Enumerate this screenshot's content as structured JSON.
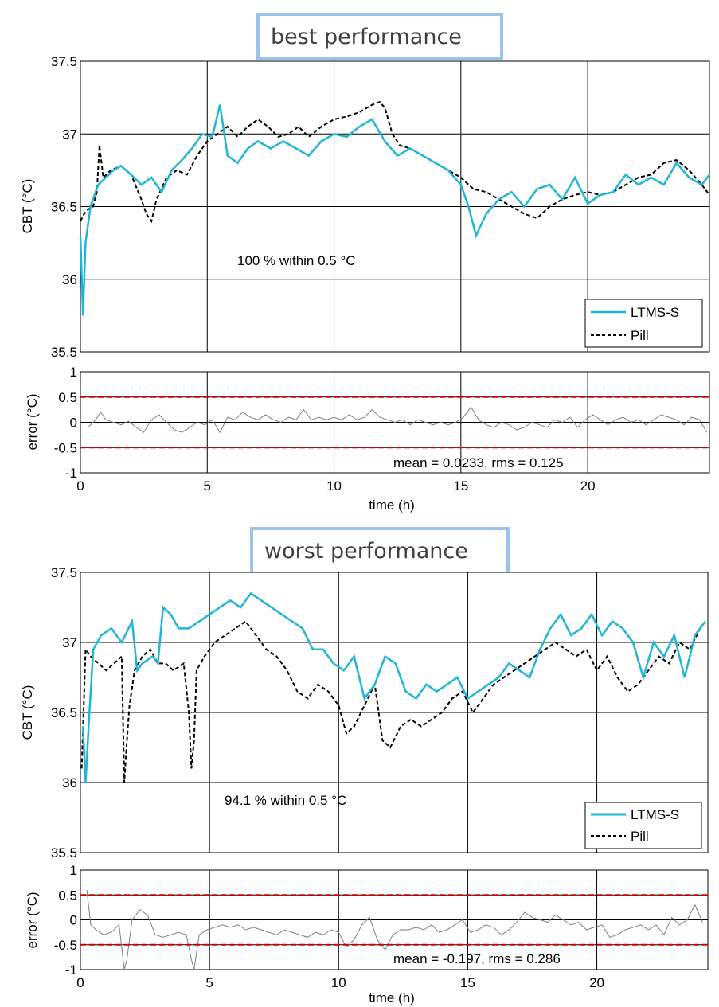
{
  "colors": {
    "ltms": "#1fb6d6",
    "pill": "#000000",
    "limit": "#cc0000",
    "error": "#7f7f7f"
  },
  "chart_data": [
    {
      "type": "line",
      "title": "best performance",
      "ylabel": "CBT (°C)",
      "xlabel": "",
      "xlim": [
        0,
        24.8
      ],
      "ylim": [
        35.5,
        37.5
      ],
      "xticks": [
        "0",
        "5",
        "10",
        "15",
        "20"
      ],
      "yticks": [
        "35.5",
        "36",
        "36.5",
        "37",
        "37.5"
      ],
      "grid": true,
      "legend": "bottom-right",
      "annotation": "100 % within 0.5 °C",
      "series": [
        {
          "name": "LTMS-S",
          "x": [
            0,
            0.1,
            0.2,
            0.4,
            0.7,
            1.0,
            1.3,
            1.6,
            2.0,
            2.4,
            2.8,
            3.2,
            3.6,
            4.0,
            4.4,
            4.8,
            5.2,
            5.5,
            5.8,
            6.2,
            6.6,
            7.0,
            7.5,
            8.0,
            8.5,
            9.0,
            9.5,
            10.0,
            10.5,
            11.0,
            11.5,
            12.0,
            12.5,
            13.0,
            13.5,
            14.0,
            14.5,
            15.0,
            15.3,
            15.6,
            16.0,
            16.5,
            17.0,
            17.5,
            18.0,
            18.5,
            19.0,
            19.5,
            20.0,
            20.5,
            21.0,
            21.5,
            22.0,
            22.5,
            23.0,
            23.5,
            24.0,
            24.5,
            24.8
          ],
          "y": [
            36.3,
            35.75,
            36.25,
            36.5,
            36.65,
            36.7,
            36.75,
            36.78,
            36.72,
            36.65,
            36.7,
            36.6,
            36.75,
            36.82,
            36.9,
            37.0,
            36.98,
            37.2,
            36.85,
            36.8,
            36.9,
            36.95,
            36.9,
            36.95,
            36.9,
            36.85,
            36.95,
            37.0,
            36.98,
            37.05,
            37.1,
            36.95,
            36.85,
            36.9,
            36.85,
            36.8,
            36.75,
            36.65,
            36.5,
            36.3,
            36.45,
            36.55,
            36.6,
            36.5,
            36.62,
            36.65,
            36.55,
            36.7,
            36.52,
            36.58,
            36.6,
            36.72,
            36.65,
            36.7,
            36.65,
            36.8,
            36.7,
            36.65,
            36.72
          ]
        },
        {
          "name": "Pill",
          "x": [
            0,
            0.15,
            0.3,
            0.5,
            0.65,
            0.75,
            0.9,
            1.2,
            1.6,
            2.0,
            2.4,
            2.6,
            2.8,
            3.0,
            3.4,
            3.8,
            4.2,
            4.6,
            5.0,
            5.4,
            5.8,
            6.2,
            6.6,
            7.0,
            7.4,
            7.8,
            8.2,
            8.6,
            9.0,
            9.5,
            10.0,
            10.5,
            11.0,
            11.5,
            11.8,
            12.0,
            12.3,
            12.6,
            13.0,
            13.5,
            14.0,
            14.5,
            15.0,
            15.5,
            16.0,
            16.5,
            17.0,
            17.5,
            18.0,
            18.5,
            19.0,
            19.5,
            20.0,
            20.5,
            21.0,
            21.5,
            22.0,
            22.5,
            23.0,
            23.5,
            24.0,
            24.5,
            24.8
          ],
          "y": [
            36.4,
            36.45,
            36.48,
            36.5,
            36.6,
            36.92,
            36.7,
            36.75,
            36.78,
            36.72,
            36.55,
            36.45,
            36.4,
            36.55,
            36.7,
            36.75,
            36.72,
            36.85,
            36.95,
            37.0,
            37.05,
            36.98,
            37.05,
            37.1,
            37.05,
            36.98,
            37.0,
            37.05,
            36.98,
            37.05,
            37.1,
            37.12,
            37.15,
            37.2,
            37.22,
            37.18,
            37.0,
            36.92,
            36.9,
            36.85,
            36.8,
            36.75,
            36.7,
            36.62,
            36.6,
            36.55,
            36.5,
            36.45,
            36.42,
            36.5,
            36.55,
            36.58,
            36.6,
            36.58,
            36.6,
            36.65,
            36.7,
            36.72,
            36.8,
            36.82,
            36.75,
            36.65,
            36.58
          ]
        }
      ]
    },
    {
      "type": "line",
      "ylabel": "error (°C)",
      "xlabel": "time (h)",
      "xlim": [
        0,
        24.8
      ],
      "ylim": [
        -1,
        1
      ],
      "xticks": [
        "0",
        "5",
        "10",
        "15",
        "20"
      ],
      "yticks": [
        "-1",
        "-0.5",
        "0",
        "0.5",
        "1"
      ],
      "grid": true,
      "limits": [
        0.5,
        -0.5
      ],
      "annotation": "mean = 0.0233, rms = 0.125",
      "series": [
        {
          "x": [
            0.3,
            0.6,
            0.8,
            1.0,
            1.3,
            1.6,
            1.9,
            2.2,
            2.5,
            2.8,
            3.1,
            3.4,
            3.7,
            4.0,
            4.3,
            4.6,
            4.9,
            5.2,
            5.5,
            5.8,
            6.1,
            6.4,
            6.7,
            7.0,
            7.3,
            7.6,
            7.9,
            8.2,
            8.5,
            8.8,
            9.1,
            9.4,
            9.7,
            10.0,
            10.3,
            10.6,
            10.9,
            11.2,
            11.5,
            11.8,
            12.1,
            12.4,
            12.7,
            13.0,
            13.3,
            13.6,
            13.9,
            14.2,
            14.5,
            14.8,
            15.1,
            15.4,
            15.7,
            16.0,
            16.3,
            16.6,
            16.9,
            17.2,
            17.5,
            17.8,
            18.1,
            18.4,
            18.7,
            19.0,
            19.3,
            19.6,
            19.9,
            20.2,
            20.5,
            20.8,
            21.1,
            21.4,
            21.7,
            22.0,
            22.3,
            22.6,
            22.9,
            23.2,
            23.5,
            23.8,
            24.1,
            24.4,
            24.7
          ],
          "y": [
            -0.1,
            0.05,
            0.2,
            0.05,
            0.0,
            -0.05,
            0.02,
            -0.1,
            -0.2,
            0.05,
            0.15,
            0.0,
            -0.15,
            -0.2,
            -0.1,
            0.0,
            -0.05,
            0.05,
            -0.2,
            0.1,
            0.05,
            0.2,
            0.1,
            0.05,
            0.15,
            0.05,
            0.0,
            0.1,
            0.05,
            0.25,
            0.05,
            0.1,
            0.05,
            0.1,
            0.05,
            0.15,
            0.05,
            0.1,
            0.25,
            0.1,
            0.05,
            0.0,
            0.05,
            -0.05,
            0.05,
            0.0,
            -0.05,
            0.0,
            -0.05,
            0.0,
            0.1,
            0.3,
            0.05,
            -0.05,
            -0.1,
            0.0,
            -0.05,
            -0.15,
            -0.1,
            0.0,
            -0.05,
            -0.1,
            0.05,
            0.0,
            0.1,
            -0.1,
            0.05,
            0.15,
            0.05,
            -0.05,
            0.05,
            0.1,
            0.0,
            0.05,
            -0.05,
            0.05,
            0.15,
            0.1,
            0.05,
            -0.05,
            0.1,
            0.05,
            -0.2
          ]
        }
      ]
    },
    {
      "type": "line",
      "title": "worst performance",
      "ylabel": "CBT (°C)",
      "xlabel": "",
      "xlim": [
        0,
        24.3
      ],
      "ylim": [
        35.5,
        37.5
      ],
      "xticks": [
        "0",
        "5",
        "10",
        "15",
        "20"
      ],
      "yticks": [
        "35.5",
        "36",
        "36.5",
        "37",
        "37.5"
      ],
      "grid": true,
      "legend": "bottom-right",
      "annotation": "94.1 % within 0.5 °C",
      "series": [
        {
          "name": "LTMS-S",
          "x": [
            0.1,
            0.2,
            0.35,
            0.5,
            0.8,
            1.2,
            1.6,
            2.0,
            2.2,
            2.4,
            2.8,
            3.0,
            3.2,
            3.5,
            3.8,
            4.2,
            4.6,
            5.0,
            5.4,
            5.8,
            6.2,
            6.6,
            7.0,
            7.4,
            7.8,
            8.2,
            8.6,
            9.0,
            9.4,
            9.8,
            10.2,
            10.6,
            11.0,
            11.4,
            11.8,
            12.2,
            12.6,
            13.0,
            13.4,
            13.8,
            14.2,
            14.6,
            15.0,
            15.4,
            15.8,
            16.2,
            16.6,
            17.0,
            17.4,
            17.8,
            18.2,
            18.6,
            19.0,
            19.4,
            19.8,
            20.2,
            20.6,
            21.0,
            21.4,
            21.8,
            22.2,
            22.6,
            23.0,
            23.4,
            23.8,
            24.2
          ],
          "y": [
            36.4,
            36.0,
            36.5,
            36.95,
            37.05,
            37.1,
            37.0,
            37.15,
            36.8,
            36.85,
            36.9,
            36.85,
            37.25,
            37.2,
            37.1,
            37.1,
            37.15,
            37.2,
            37.25,
            37.3,
            37.25,
            37.35,
            37.3,
            37.25,
            37.2,
            37.15,
            37.1,
            36.95,
            36.95,
            36.85,
            36.8,
            36.9,
            36.6,
            36.7,
            36.9,
            36.85,
            36.65,
            36.6,
            36.7,
            36.65,
            36.7,
            36.75,
            36.6,
            36.65,
            36.7,
            36.75,
            36.85,
            36.8,
            36.75,
            36.95,
            37.1,
            37.2,
            37.05,
            37.1,
            37.2,
            37.05,
            37.15,
            37.1,
            37.0,
            36.75,
            37.0,
            36.9,
            37.05,
            36.75,
            37.05,
            37.15
          ]
        },
        {
          "name": "Pill",
          "x": [
            0.05,
            0.2,
            0.4,
            0.7,
            1.0,
            1.3,
            1.6,
            1.7,
            1.8,
            1.9,
            2.1,
            2.4,
            2.7,
            3.0,
            3.3,
            3.6,
            4.0,
            4.2,
            4.3,
            4.4,
            4.5,
            4.8,
            5.2,
            5.6,
            6.0,
            6.4,
            6.8,
            7.2,
            7.6,
            8.0,
            8.4,
            8.8,
            9.2,
            9.6,
            10.0,
            10.3,
            10.6,
            11.0,
            11.4,
            11.7,
            12.0,
            12.4,
            12.8,
            13.2,
            13.6,
            14.0,
            14.4,
            14.8,
            15.2,
            15.6,
            16.0,
            16.4,
            16.8,
            17.2,
            17.6,
            18.0,
            18.4,
            18.8,
            19.2,
            19.6,
            20.0,
            20.4,
            20.8,
            21.2,
            21.6,
            22.0,
            22.4,
            22.8,
            23.2,
            23.6,
            24.0,
            24.2
          ],
          "y": [
            36.1,
            36.95,
            36.9,
            36.85,
            36.8,
            36.85,
            36.9,
            36.0,
            36.3,
            36.55,
            36.8,
            36.9,
            36.95,
            36.85,
            36.85,
            36.8,
            36.85,
            36.5,
            36.1,
            36.3,
            36.8,
            36.9,
            37.0,
            37.05,
            37.1,
            37.15,
            37.05,
            36.95,
            36.9,
            36.8,
            36.65,
            36.6,
            36.7,
            36.65,
            36.55,
            36.35,
            36.4,
            36.55,
            36.7,
            36.3,
            36.25,
            36.4,
            36.45,
            36.4,
            36.45,
            36.5,
            36.6,
            36.65,
            36.5,
            36.6,
            36.7,
            36.75,
            36.8,
            36.85,
            36.9,
            36.95,
            37.0,
            36.95,
            36.9,
            36.95,
            36.8,
            36.9,
            36.75,
            36.65,
            36.7,
            36.8,
            36.9,
            36.85,
            37.0,
            36.95,
            37.1,
            37.15
          ]
        }
      ]
    },
    {
      "type": "line",
      "ylabel": "error (°C)",
      "xlabel": "time (h)",
      "xlim": [
        0,
        24.3
      ],
      "ylim": [
        -1,
        1
      ],
      "xticks": [
        "0",
        "5",
        "10",
        "15",
        "20"
      ],
      "yticks": [
        "-1",
        "-0.5",
        "0",
        "0.5",
        "1"
      ],
      "grid": true,
      "limits": [
        0.5,
        -0.5
      ],
      "annotation": "mean = -0.197, rms = 0.286",
      "series": [
        {
          "x": [
            0.25,
            0.4,
            0.6,
            0.9,
            1.2,
            1.5,
            1.7,
            1.8,
            2.0,
            2.3,
            2.6,
            2.9,
            3.2,
            3.5,
            3.8,
            4.1,
            4.3,
            4.4,
            4.6,
            4.9,
            5.2,
            5.5,
            5.8,
            6.1,
            6.4,
            6.7,
            7.0,
            7.3,
            7.6,
            7.9,
            8.2,
            8.5,
            8.8,
            9.1,
            9.4,
            9.7,
            10.0,
            10.3,
            10.6,
            10.9,
            11.2,
            11.5,
            11.8,
            12.1,
            12.4,
            12.7,
            13.0,
            13.3,
            13.6,
            13.9,
            14.2,
            14.5,
            14.8,
            15.1,
            15.4,
            15.7,
            16.0,
            16.3,
            16.6,
            16.9,
            17.2,
            17.5,
            17.8,
            18.1,
            18.4,
            18.7,
            19.0,
            19.3,
            19.6,
            19.9,
            20.2,
            20.5,
            20.8,
            21.1,
            21.4,
            21.7,
            22.0,
            22.3,
            22.6,
            22.9,
            23.2,
            23.5,
            23.8,
            24.1
          ],
          "y": [
            0.6,
            -0.1,
            -0.2,
            -0.3,
            -0.25,
            -0.1,
            -1.0,
            -0.8,
            0.0,
            0.2,
            0.1,
            -0.3,
            -0.35,
            -0.3,
            -0.25,
            -0.3,
            -0.8,
            -1.0,
            -0.3,
            -0.2,
            -0.15,
            -0.1,
            -0.15,
            -0.1,
            -0.2,
            -0.15,
            -0.2,
            -0.25,
            -0.3,
            -0.2,
            -0.25,
            -0.3,
            -0.35,
            -0.25,
            -0.3,
            -0.2,
            -0.25,
            -0.55,
            -0.4,
            -0.1,
            0.05,
            -0.4,
            -0.6,
            -0.3,
            -0.2,
            -0.2,
            -0.15,
            -0.2,
            -0.1,
            -0.25,
            -0.2,
            -0.1,
            0.0,
            -0.25,
            -0.2,
            -0.1,
            -0.15,
            -0.3,
            -0.2,
            -0.05,
            0.15,
            0.05,
            0.0,
            -0.05,
            0.1,
            0.0,
            -0.1,
            -0.05,
            -0.2,
            -0.15,
            -0.1,
            -0.35,
            -0.3,
            -0.2,
            -0.15,
            -0.1,
            -0.2,
            -0.1,
            -0.3,
            0.05,
            -0.1,
            0.0,
            0.3,
            -0.05
          ]
        }
      ]
    }
  ]
}
